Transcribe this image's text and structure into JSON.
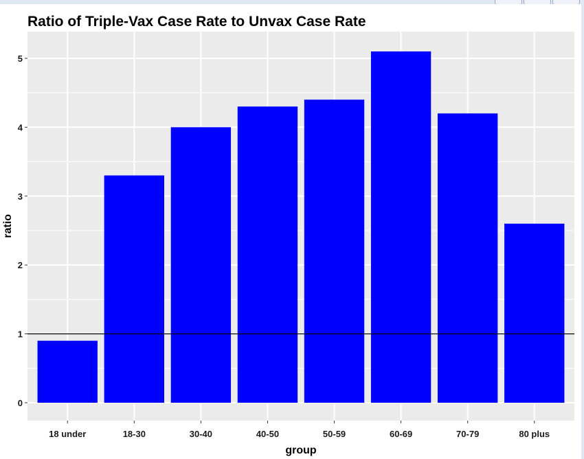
{
  "chart_data": {
    "type": "bar",
    "title": "Ratio of Triple-Vax Case Rate to Unvax Case Rate",
    "xlabel": "group",
    "ylabel": "ratio",
    "categories": [
      "18 under",
      "18-30",
      "30-40",
      "40-50",
      "50-59",
      "60-69",
      "70-79",
      "80 plus"
    ],
    "values": [
      0.9,
      3.3,
      4.0,
      4.3,
      4.4,
      5.1,
      4.2,
      2.6
    ],
    "yticks": [
      "0",
      "1",
      "2",
      "3",
      "4",
      "5"
    ],
    "ylim": [
      -0.26,
      5.39
    ],
    "reference_line": 1,
    "grid": true,
    "bar_color": "#0000ff",
    "panel_color": "#ebebeb",
    "reference_line_color": "#000000"
  }
}
